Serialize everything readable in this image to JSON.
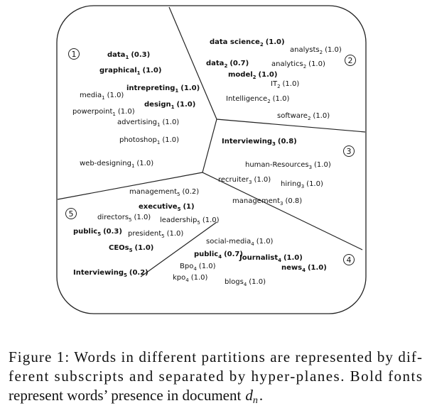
{
  "figure": {
    "regions": [
      "1",
      "2",
      "3",
      "4",
      "5"
    ],
    "words": [
      {
        "word": "data",
        "sub": "1",
        "score": "(0.3)",
        "bold": true
      },
      {
        "word": "graphical",
        "sub": "1",
        "score": "(1.0)",
        "bold": true
      },
      {
        "word": "intrepreting",
        "sub": "1",
        "score": "(1.0)",
        "bold": true
      },
      {
        "word": "media",
        "sub": "1",
        "score": "(1.0)",
        "bold": false
      },
      {
        "word": "design",
        "sub": "1",
        "score": "(1.0)",
        "bold": true
      },
      {
        "word": "powerpoint",
        "sub": "1",
        "score": "(1.0)",
        "bold": false
      },
      {
        "word": "advertising",
        "sub": "1",
        "score": "(1.0)",
        "bold": false
      },
      {
        "word": "photoshop",
        "sub": "1",
        "score": "(1.0)",
        "bold": false
      },
      {
        "word": "web-designing",
        "sub": "1",
        "score": "(1.0)",
        "bold": false
      },
      {
        "word": "data science",
        "sub": "2",
        "score": "(1.0)",
        "bold": true
      },
      {
        "word": "analysts",
        "sub": "2",
        "score": "(1.0)",
        "bold": false
      },
      {
        "word": "data",
        "sub": "2",
        "score": "(0.7)",
        "bold": true
      },
      {
        "word": "analytics",
        "sub": "2",
        "score": "(1.0)",
        "bold": false
      },
      {
        "word": "model",
        "sub": "2",
        "score": "(1.0)",
        "bold": true
      },
      {
        "word": "IT",
        "sub": "2",
        "score": "(1.0)",
        "bold": false
      },
      {
        "word": "Intelligence",
        "sub": "2",
        "score": "(1.0)",
        "bold": false
      },
      {
        "word": "software",
        "sub": "2",
        "score": "(1.0)",
        "bold": false
      },
      {
        "word": "Interviewing",
        "sub": "3",
        "score": "(0.8)",
        "bold": true
      },
      {
        "word": "human-Resources",
        "sub": "3",
        "score": "(1.0)",
        "bold": false
      },
      {
        "word": "recruiter",
        "sub": "3",
        "score": "(1.0)",
        "bold": false
      },
      {
        "word": "hiring",
        "sub": "3",
        "score": "(1.0)",
        "bold": false
      },
      {
        "word": "management",
        "sub": "3",
        "score": "(0.8)",
        "bold": false
      },
      {
        "word": "management",
        "sub": "5",
        "score": "(0.2)",
        "bold": false
      },
      {
        "word": "executive",
        "sub": "5",
        "score": "(1)",
        "bold": true
      },
      {
        "word": "directors",
        "sub": "5",
        "score": "(1.0)",
        "bold": false
      },
      {
        "word": "leadership",
        "sub": "5",
        "score": "(1.0)",
        "bold": false
      },
      {
        "word": "public",
        "sub": "5",
        "score": "(0.3)",
        "bold": true
      },
      {
        "word": "president",
        "sub": "5",
        "score": "(1.0)",
        "bold": false
      },
      {
        "word": "CEOs",
        "sub": "5",
        "score": "(1.0)",
        "bold": true
      },
      {
        "word": "Interviewing",
        "sub": "5",
        "score": "(0.2)",
        "bold": true
      },
      {
        "word": "social-media",
        "sub": "4",
        "score": "(1.0)",
        "bold": false
      },
      {
        "word": "public",
        "sub": "4",
        "score": "(0.7)",
        "bold": true
      },
      {
        "word": "Journalist",
        "sub": "4",
        "score": "(1.0)",
        "bold": true
      },
      {
        "word": "news",
        "sub": "4",
        "score": "(1.0)",
        "bold": true
      },
      {
        "word": "Bpo",
        "sub": "4",
        "score": "(1.0)",
        "bold": false
      },
      {
        "word": "kpo",
        "sub": "4",
        "score": "(1.0)",
        "bold": false
      },
      {
        "word": "blogs",
        "sub": "4",
        "score": "(1.0)",
        "bold": false
      }
    ]
  },
  "caption": {
    "lines": [
      "Figure 1: Words in different partitions are represented by dif-",
      "ferent subscripts and separated by hyper-planes. Bold fonts",
      "represent words’ presence in document"
    ],
    "math": "d",
    "math_sub": "n",
    "end": "."
  }
}
